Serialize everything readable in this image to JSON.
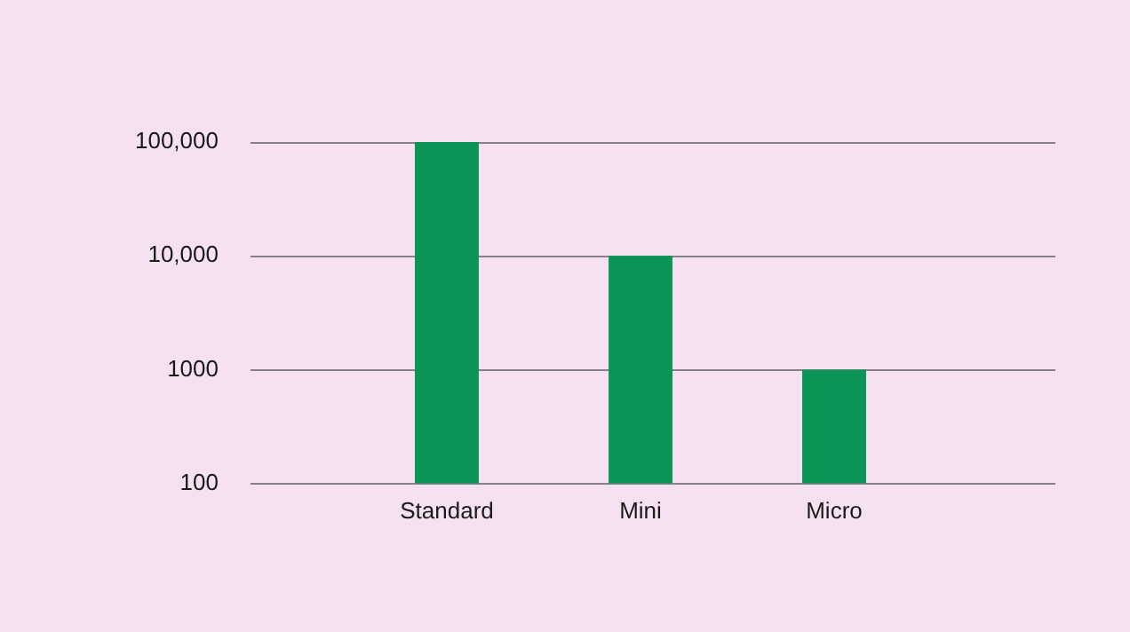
{
  "chart_data": {
    "type": "bar",
    "categories": [
      "Standard",
      "Mini",
      "Micro"
    ],
    "values": [
      100000,
      10000,
      1000
    ],
    "color": "#0a9455",
    "log": "y",
    "ylim": [
      100,
      100000
    ],
    "yticks": [
      100,
      1000,
      {
        "value": 10000,
        "label": "10,000"
      },
      {
        "value": 100000,
        "label": "100,000"
      }
    ],
    "grid": "y",
    "legend": false
  }
}
